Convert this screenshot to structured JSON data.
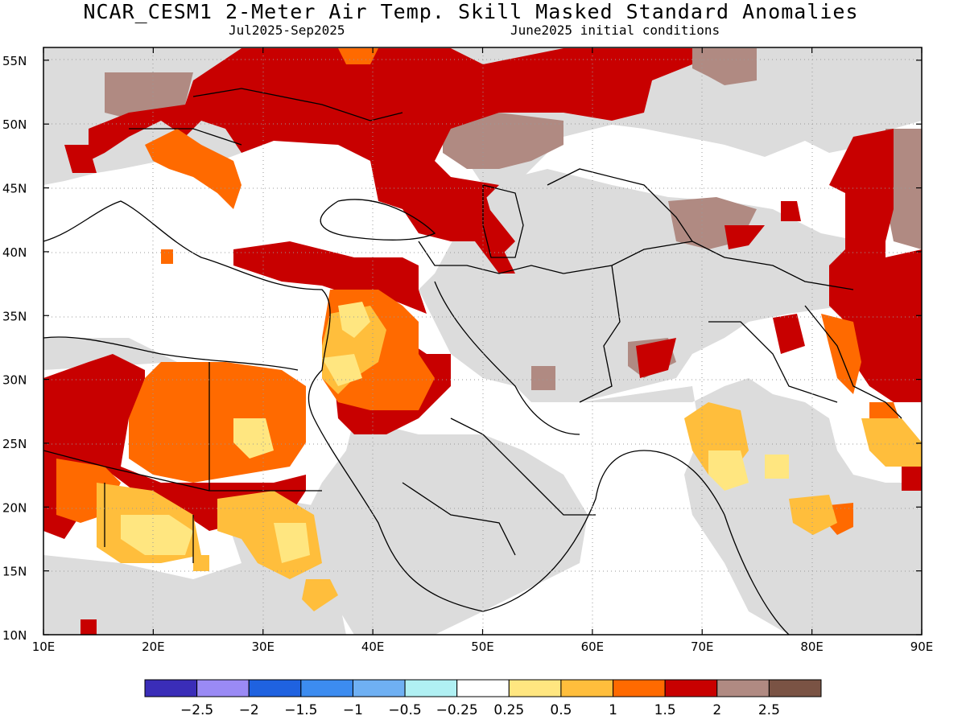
{
  "title": "NCAR_CESM1 2-Meter Air Temp. Skill Masked Standard Anomalies",
  "period": "Jul2025-Sep2025",
  "initial_conditions": "June2025 initial conditions",
  "lat_labels": [
    "55N",
    "50N",
    "45N",
    "40N",
    "35N",
    "30N",
    "25N",
    "20N",
    "15N",
    "10N"
  ],
  "lon_labels": [
    "10E",
    "20E",
    "30E",
    "40E",
    "50E",
    "60E",
    "70E",
    "80E",
    "90E"
  ],
  "colorbar": {
    "colors": [
      "#3a2db8",
      "#9a8af5",
      "#1f62e0",
      "#3c8cf0",
      "#6fb0f3",
      "#b0f0f3",
      "#ffffff",
      "#ffe680",
      "#ffbe3c",
      "#ff6a00",
      "#c80000",
      "#b08a82",
      "#7a5344"
    ],
    "labels": [
      "-2.5",
      "-2",
      "-1.5",
      "-1",
      "-0.5",
      "-0.25",
      "0.25",
      "0.5",
      "1",
      "1.5",
      "2",
      "2.5"
    ]
  },
  "colors": {
    "masked": "#dcdcdc",
    "land_outline": "#000000",
    "grid": "#9a9a9a"
  }
}
